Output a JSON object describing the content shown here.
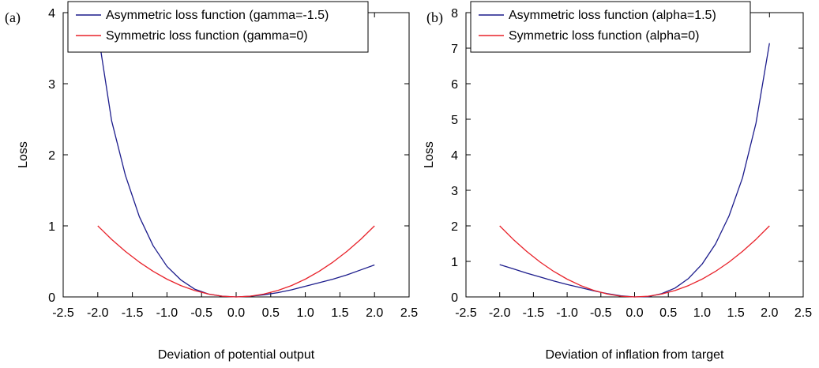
{
  "chart_data": [
    {
      "type": "line",
      "panel_label": "(a)",
      "title": "",
      "xlabel": "Deviation of potential output",
      "ylabel": "Loss",
      "xlim": [
        -2.5,
        2.5
      ],
      "ylim": [
        0,
        4
      ],
      "xticks": [
        -2.5,
        -2.0,
        -1.5,
        -1.0,
        -0.5,
        0.0,
        0.5,
        1.0,
        1.5,
        2.0,
        2.5
      ],
      "xtick_labels": [
        "-2.5",
        "-2.0",
        "-1.5",
        "-1.0",
        "-0.5",
        "0.0",
        "0.5",
        "1.0",
        "1.5",
        "2.0",
        "2.5"
      ],
      "yticks": [
        0,
        1,
        2,
        3,
        4
      ],
      "ytick_labels": [
        "0",
        "1",
        "2",
        "3",
        "4"
      ],
      "grid": false,
      "legend_position": "top-left",
      "x": [
        -2.0,
        -1.8,
        -1.6,
        -1.4,
        -1.2,
        -1.0,
        -0.8,
        -0.6,
        -0.4,
        -0.2,
        0.0,
        0.2,
        0.4,
        0.6,
        0.8,
        1.0,
        1.2,
        1.4,
        1.6,
        1.8,
        2.0
      ],
      "series": [
        {
          "name": "Asymmetric loss function (gamma=-1.5)",
          "color": "#1c1c8c",
          "values": [
            3.74,
            2.48,
            1.71,
            1.13,
            0.72,
            0.43,
            0.24,
            0.11,
            0.04,
            0.01,
            0.0,
            0.01,
            0.03,
            0.06,
            0.1,
            0.15,
            0.2,
            0.25,
            0.31,
            0.38,
            0.45
          ]
        },
        {
          "name": "Symmetric loss function (gamma=0)",
          "color": "#e8222a",
          "values": [
            1.0,
            0.81,
            0.64,
            0.49,
            0.36,
            0.25,
            0.16,
            0.09,
            0.04,
            0.01,
            0.0,
            0.01,
            0.04,
            0.09,
            0.16,
            0.25,
            0.36,
            0.49,
            0.64,
            0.81,
            1.0
          ]
        }
      ]
    },
    {
      "type": "line",
      "panel_label": "(b)",
      "title": "",
      "xlabel": "Deviation of inflation from target",
      "ylabel": "Loss",
      "xlim": [
        -2.5,
        2.5
      ],
      "ylim": [
        0,
        8
      ],
      "xticks": [
        -2.5,
        -2.0,
        -1.5,
        -1.0,
        -0.5,
        0.0,
        0.5,
        1.0,
        1.5,
        2.0,
        2.5
      ],
      "xtick_labels": [
        "-2.5",
        "-2.0",
        "-1.5",
        "-1.0",
        "-0.5",
        "0.0",
        "0.5",
        "1.0",
        "1.5",
        "2.0",
        "2.5"
      ],
      "yticks": [
        0,
        1,
        2,
        3,
        4,
        5,
        6,
        7,
        8
      ],
      "ytick_labels": [
        "0",
        "1",
        "2",
        "3",
        "4",
        "5",
        "6",
        "7",
        "8"
      ],
      "grid": false,
      "legend_position": "top-left",
      "x": [
        -2.0,
        -1.8,
        -1.6,
        -1.4,
        -1.2,
        -1.0,
        -0.8,
        -0.6,
        -0.4,
        -0.2,
        0.0,
        0.2,
        0.4,
        0.6,
        0.8,
        1.0,
        1.2,
        1.4,
        1.6,
        1.8,
        2.0
      ],
      "series": [
        {
          "name": "Asymmetric loss function (alpha=1.5)",
          "color": "#1c1c8c",
          "values": [
            0.91,
            0.79,
            0.67,
            0.56,
            0.45,
            0.35,
            0.26,
            0.17,
            0.09,
            0.03,
            0.0,
            0.01,
            0.09,
            0.25,
            0.52,
            0.92,
            1.49,
            2.28,
            3.35,
            4.89,
            7.14
          ]
        },
        {
          "name": "Symmetric loss function (alpha=0)",
          "color": "#e8222a",
          "values": [
            2.0,
            1.62,
            1.28,
            0.98,
            0.72,
            0.5,
            0.32,
            0.18,
            0.08,
            0.02,
            0.0,
            0.02,
            0.08,
            0.18,
            0.32,
            0.5,
            0.72,
            0.98,
            1.28,
            1.62,
            2.0
          ]
        }
      ]
    }
  ]
}
